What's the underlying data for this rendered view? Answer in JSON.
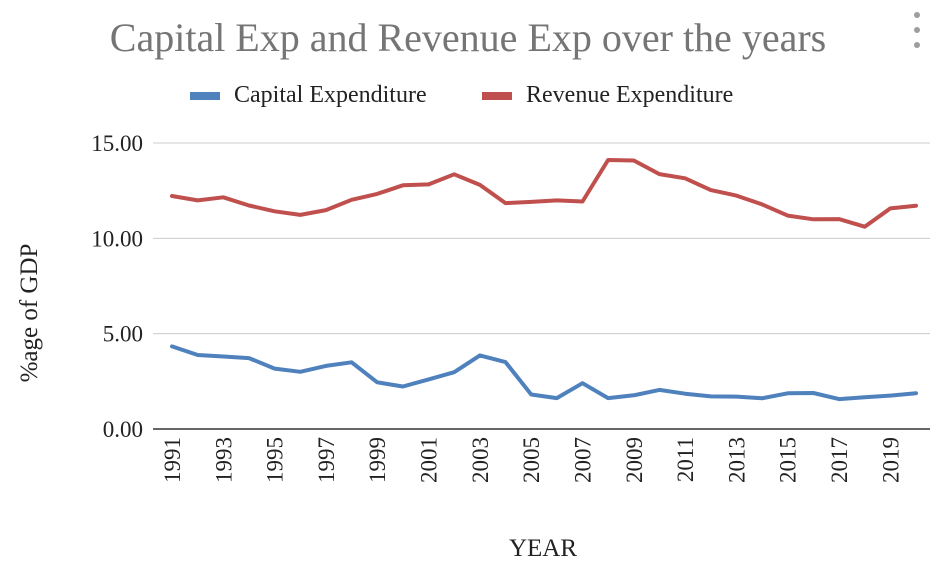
{
  "chart_data": {
    "type": "line",
    "title": "Capital Exp and Revenue Exp over the years",
    "xlabel": "YEAR",
    "ylabel": "%age of GDP",
    "ylim": [
      0,
      15
    ],
    "yticks": [
      "0.00",
      "5.00",
      "10.00",
      "15.00"
    ],
    "x_tick_labels": [
      "1991",
      "1993",
      "1995",
      "1997",
      "1999",
      "2001",
      "2003",
      "2005",
      "2007",
      "2009",
      "2011",
      "2013",
      "2015",
      "2017",
      "2019"
    ],
    "legend_position": "top",
    "grid": true,
    "x": [
      1991,
      1992,
      1993,
      1994,
      1995,
      1996,
      1997,
      1998,
      1999,
      2000,
      2001,
      2002,
      2003,
      2004,
      2005,
      2006,
      2007,
      2008,
      2009,
      2010,
      2011,
      2012,
      2013,
      2014,
      2015,
      2016,
      2017,
      2018,
      2019,
      2020
    ],
    "series": [
      {
        "name": "Capital Expenditure",
        "color": "#4f81bd",
        "values": [
          4.33,
          3.88,
          3.8,
          3.72,
          3.17,
          3.0,
          3.31,
          3.5,
          2.45,
          2.23,
          2.6,
          2.98,
          3.86,
          3.51,
          1.81,
          1.62,
          2.4,
          1.62,
          1.77,
          2.05,
          1.85,
          1.71,
          1.7,
          1.61,
          1.87,
          1.89,
          1.57,
          1.66,
          1.75,
          1.87
        ]
      },
      {
        "name": "Revenue Expenditure",
        "color": "#c0504d",
        "values": [
          12.22,
          11.99,
          12.15,
          11.72,
          11.42,
          11.23,
          11.48,
          12.02,
          12.33,
          12.78,
          12.83,
          13.36,
          12.8,
          11.85,
          11.91,
          11.99,
          11.93,
          14.11,
          14.08,
          13.37,
          13.15,
          12.53,
          12.24,
          11.78,
          11.19,
          11.0,
          11.01,
          10.61,
          11.57,
          11.71
        ]
      }
    ]
  },
  "menu": {
    "icon": "more-vert-icon"
  }
}
